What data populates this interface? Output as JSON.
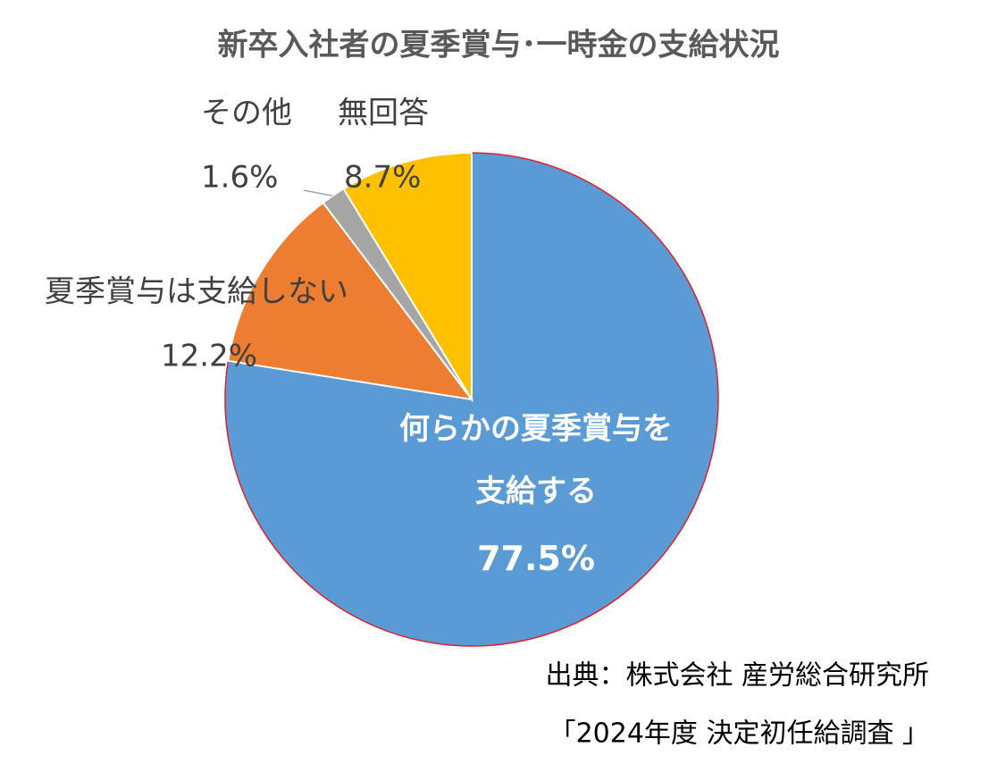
{
  "chart_data": {
    "type": "pie",
    "title": "新卒入社者の夏季賞与･一時金の支給状況",
    "categories": [
      "何らかの夏季賞与を支給する",
      "夏季賞与は支給しない",
      "その他",
      "無回答"
    ],
    "values": [
      77.5,
      12.2,
      1.6,
      8.7
    ],
    "value_labels": [
      "77.5%",
      "12.2%",
      "1.6%",
      "8.7%"
    ],
    "colors": [
      "#5b9bd5",
      "#ed7d31",
      "#a5a5a5",
      "#ffc000"
    ],
    "source": [
      "出典：株式会社 産労総合研究所",
      "「2024年度 決定初任給調査 」"
    ]
  }
}
